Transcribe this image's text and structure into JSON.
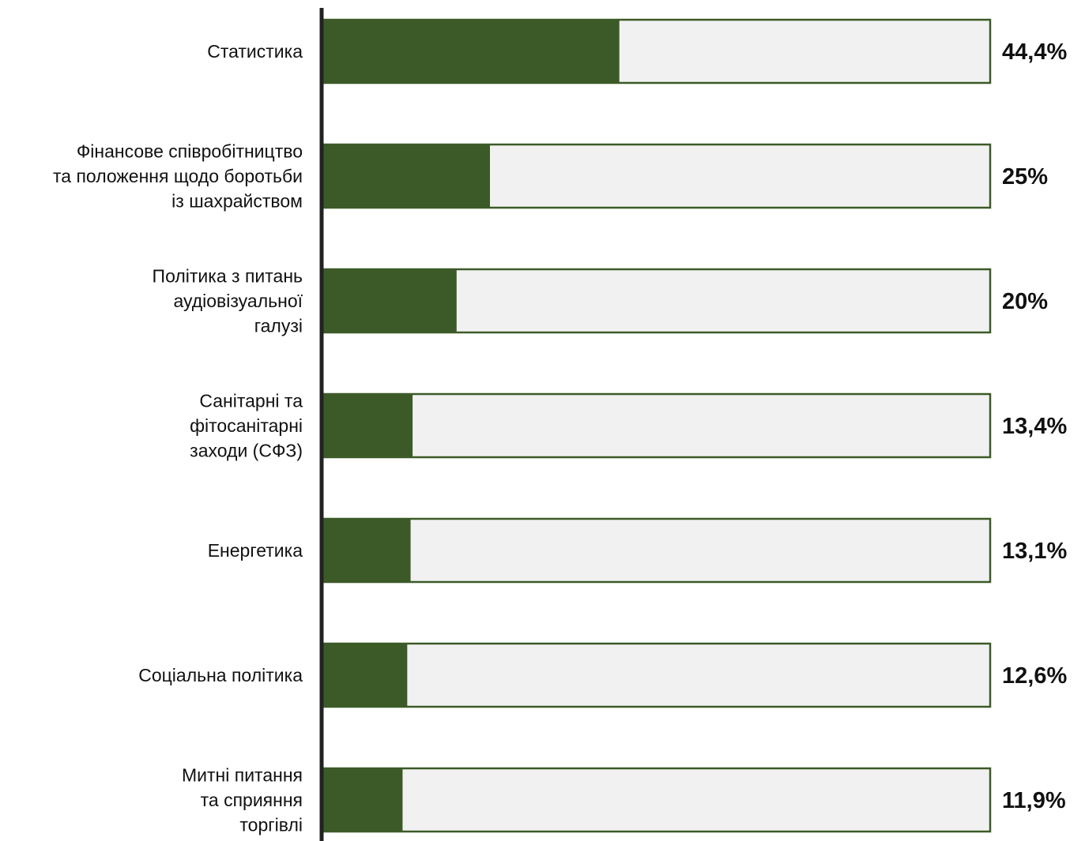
{
  "chart_data": {
    "type": "bar",
    "orientation": "horizontal",
    "stacked_progress": true,
    "xlim": [
      0,
      100
    ],
    "title": "",
    "xlabel": "",
    "ylabel": "",
    "grid": false,
    "categories": [
      [
        "Статистика"
      ],
      [
        "Фінансове співробітництво",
        "та положення щодо боротьби",
        "із шахрайством"
      ],
      [
        "Політика з питань",
        "аудіовізуальної",
        "галузі"
      ],
      [
        "Санітарні та",
        "фітосанітарні",
        "заходи (СФЗ)"
      ],
      [
        "Енергетика"
      ],
      [
        "Соціальна політика"
      ],
      [
        "Митні питання",
        "та сприяння",
        "торгівлі"
      ]
    ],
    "values": [
      44.4,
      25,
      20,
      13.4,
      13.1,
      12.6,
      11.9
    ],
    "value_labels": [
      "44,4%",
      "25%",
      "20%",
      "13,4%",
      "13,1%",
      "12,6%",
      "11,9%"
    ],
    "colors": {
      "fill": "#3c5a27",
      "track": "#f1f1f1",
      "border": "#3c5a27",
      "axis": "#222222"
    }
  }
}
